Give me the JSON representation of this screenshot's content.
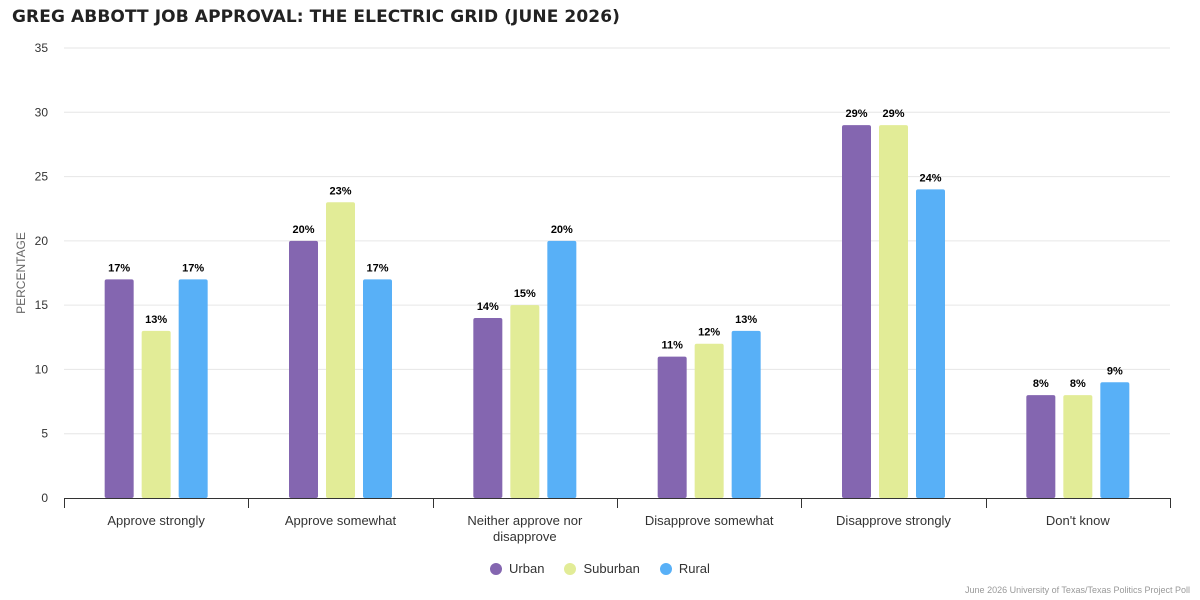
{
  "title": "GREG ABBOTT JOB APPROVAL: THE ELECTRIC GRID (JUNE 2026)",
  "credits": "June 2026 University of Texas/Texas Politics Project Poll",
  "chart_data": {
    "type": "bar",
    "title": "GREG ABBOTT JOB APPROVAL: THE ELECTRIC GRID (JUNE 2026)",
    "xlabel": "",
    "ylabel": "PERCENTAGE",
    "ylim": [
      0,
      35
    ],
    "yticks": [
      0,
      5,
      10,
      15,
      20,
      25,
      30,
      35
    ],
    "grid": true,
    "legend_position": "bottom-center",
    "categories": [
      "Approve strongly",
      "Approve somewhat",
      "Neither approve nor disapprove",
      "Disapprove somewhat",
      "Disapprove strongly",
      "Don't know"
    ],
    "series": [
      {
        "name": "Urban",
        "color": "#8466b0",
        "values": [
          17,
          20,
          14,
          11,
          29,
          8
        ]
      },
      {
        "name": "Suburban",
        "color": "#e2ec97",
        "values": [
          13,
          23,
          15,
          12,
          29,
          8
        ]
      },
      {
        "name": "Rural",
        "color": "#58b0f7",
        "values": [
          17,
          17,
          20,
          13,
          24,
          9
        ]
      }
    ],
    "value_suffix": "%"
  }
}
